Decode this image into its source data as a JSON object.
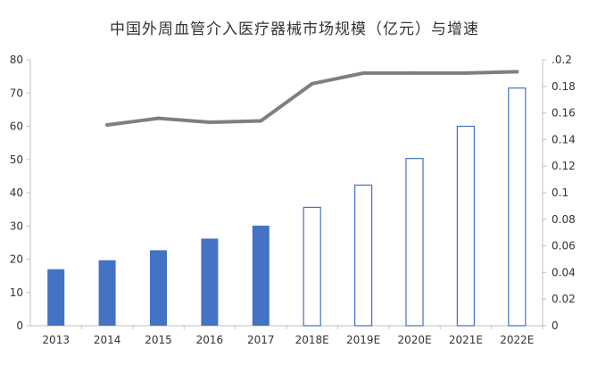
{
  "chart_data": {
    "type": "bar",
    "title": "中国外周血管介入医疗器械市场规模（亿元）与增速",
    "categories": [
      "2013",
      "2014",
      "2015",
      "2016",
      "2017",
      "2018E",
      "2019E",
      "2020E",
      "2021E",
      "2022E"
    ],
    "series": [
      {
        "type": "bar",
        "values": [
          17,
          19.7,
          22.7,
          26.2,
          30.1,
          35.6,
          42.3,
          50.3,
          60,
          71.5
        ],
        "estimated": [
          false,
          false,
          false,
          false,
          false,
          true,
          true,
          true,
          true,
          true
        ],
        "axis": "left"
      },
      {
        "type": "line",
        "values": [
          null,
          0.151,
          0.156,
          0.153,
          0.154,
          0.182,
          0.19,
          0.19,
          0.19,
          0.191
        ],
        "axis": "right"
      }
    ],
    "yleft": {
      "lim": [
        0,
        80
      ],
      "ticks": [
        "0",
        "10",
        "20",
        "30",
        "40",
        "50",
        "60",
        "70",
        "80"
      ]
    },
    "yright": {
      "lim": [
        0,
        0.2
      ],
      "ticks": [
        "0",
        "0.02",
        "0.04",
        "0.06",
        "0.08",
        "0.1",
        "0.12",
        "0.14",
        "0.16",
        "0.18",
        ".0.2"
      ]
    },
    "grid": false,
    "legend": "none",
    "colors": {
      "bar_fill": "#4472C4",
      "bar_outline": "#4472C4",
      "line": "#7F7F7F",
      "axis": "#BFBFBF",
      "text": "#333333"
    }
  }
}
